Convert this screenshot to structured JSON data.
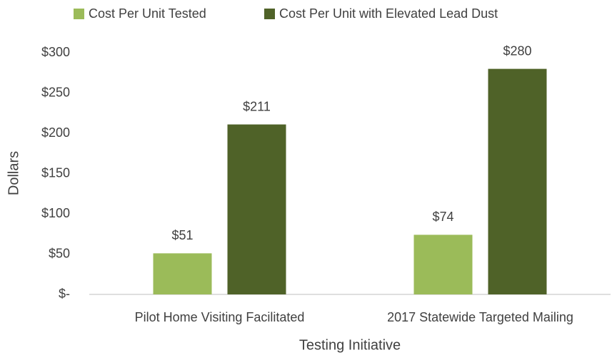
{
  "chart_data": {
    "type": "bar",
    "x_label": "Testing Initiative",
    "y_label": "Dollars",
    "categories": [
      "Pilot Home Visiting Facilitated",
      "2017 Statewide Targeted Mailing"
    ],
    "series": [
      {
        "name": "Cost Per Unit Tested",
        "color": "#9bbb59",
        "values": [
          51,
          74
        ],
        "value_labels": [
          "$51",
          "$74"
        ]
      },
      {
        "name": "Cost Per Unit with Elevated Lead Dust",
        "color": "#4f6228",
        "values": [
          211,
          280
        ],
        "value_labels": [
          "$211",
          "$280"
        ]
      }
    ],
    "ylim": [
      0,
      300
    ],
    "yticks": [
      {
        "value": 0,
        "label": "$-"
      },
      {
        "value": 50,
        "label": "$50"
      },
      {
        "value": 100,
        "label": "$100"
      },
      {
        "value": 150,
        "label": "$150"
      },
      {
        "value": 200,
        "label": "$200"
      },
      {
        "value": 250,
        "label": "$250"
      },
      {
        "value": 300,
        "label": "$300"
      }
    ],
    "legend": "top",
    "grid": false
  }
}
